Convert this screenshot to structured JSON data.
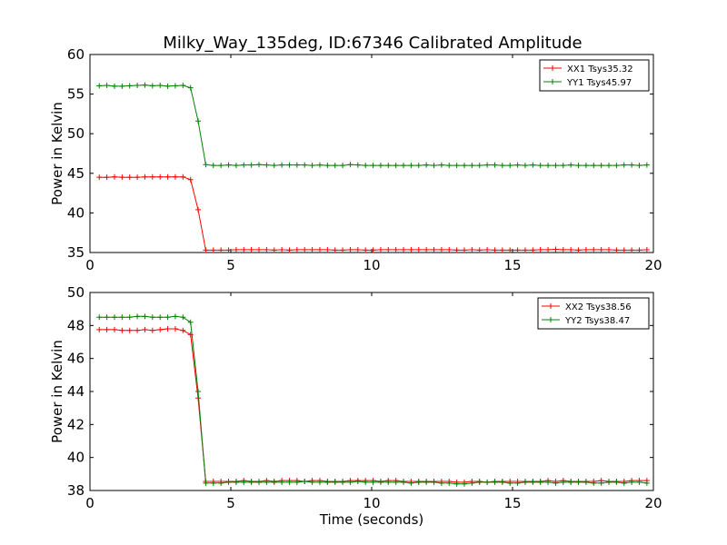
{
  "title": "Milky_Way_135deg, ID:67346 Calibrated Amplitude",
  "chart_data": [
    {
      "type": "line",
      "title": "Milky_Way_135deg, ID:67346 Calibrated Amplitude",
      "xlabel": "",
      "ylabel": "Power in Kelvin",
      "xlim": [
        0,
        20
      ],
      "ylim": [
        35,
        60
      ],
      "xticks": [
        0,
        5,
        10,
        15,
        20
      ],
      "yticks": [
        35,
        40,
        45,
        50,
        55,
        60
      ],
      "grid": false,
      "legend_position": "top-right",
      "x": [
        0.33,
        0.6,
        0.87,
        1.14,
        1.41,
        1.68,
        1.95,
        2.22,
        2.49,
        2.76,
        3.03,
        3.3,
        3.57,
        3.84,
        4.11,
        4.38,
        4.65,
        4.92,
        5.19,
        5.46,
        5.73,
        6.0,
        6.27,
        6.54,
        6.81,
        7.08,
        7.35,
        7.62,
        7.89,
        8.16,
        8.43,
        8.7,
        8.97,
        9.24,
        9.51,
        9.78,
        10.05,
        10.32,
        10.59,
        10.86,
        11.13,
        11.4,
        11.67,
        11.94,
        12.21,
        12.48,
        12.75,
        13.02,
        13.29,
        13.56,
        13.83,
        14.1,
        14.37,
        14.64,
        14.91,
        15.18,
        15.45,
        15.72,
        15.99,
        16.26,
        16.53,
        16.8,
        17.07,
        17.34,
        17.61,
        17.88,
        18.15,
        18.42,
        18.69,
        18.96,
        19.23,
        19.5,
        19.77
      ],
      "series": [
        {
          "name": "XX1 Tsys35.32",
          "color": "#ff0000",
          "values": [
            44.5,
            44.5,
            44.55,
            44.5,
            44.5,
            44.5,
            44.55,
            44.55,
            44.55,
            44.55,
            44.55,
            44.55,
            44.2,
            40.4,
            35.3,
            35.3,
            35.3,
            35.3,
            35.35,
            35.35,
            35.35,
            35.35,
            35.35,
            35.3,
            35.35,
            35.3,
            35.35,
            35.35,
            35.35,
            35.35,
            35.35,
            35.3,
            35.3,
            35.35,
            35.35,
            35.3,
            35.3,
            35.35,
            35.35,
            35.35,
            35.35,
            35.35,
            35.35,
            35.35,
            35.35,
            35.35,
            35.35,
            35.3,
            35.3,
            35.35,
            35.3,
            35.35,
            35.3,
            35.3,
            35.3,
            35.3,
            35.3,
            35.3,
            35.35,
            35.35,
            35.4,
            35.35,
            35.35,
            35.3,
            35.35,
            35.35,
            35.35,
            35.35,
            35.3,
            35.3,
            35.3,
            35.3,
            35.35
          ]
        },
        {
          "name": "YY1 Tsys45.97",
          "color": "#008000",
          "values": [
            56.05,
            56.1,
            56.0,
            56.0,
            56.05,
            56.1,
            56.15,
            56.05,
            56.1,
            56.0,
            56.05,
            56.1,
            55.8,
            51.6,
            46.1,
            46.0,
            46.0,
            46.05,
            46.0,
            46.05,
            46.05,
            46.1,
            46.05,
            46.0,
            46.05,
            46.05,
            46.05,
            46.05,
            46.0,
            46.05,
            46.0,
            46.0,
            46.0,
            46.1,
            46.05,
            46.0,
            46.0,
            46.0,
            46.0,
            46.0,
            46.0,
            46.0,
            46.0,
            46.05,
            46.0,
            46.05,
            46.0,
            46.0,
            46.0,
            46.0,
            46.0,
            46.05,
            46.05,
            46.0,
            46.0,
            46.05,
            46.0,
            46.05,
            46.0,
            46.0,
            46.0,
            46.0,
            46.05,
            46.0,
            46.0,
            46.0,
            46.0,
            46.0,
            46.0,
            46.05,
            46.05,
            46.0,
            46.05
          ]
        }
      ]
    },
    {
      "type": "line",
      "title": "",
      "xlabel": "Time (seconds)",
      "ylabel": "Power in Kelvin",
      "xlim": [
        0,
        20
      ],
      "ylim": [
        38,
        50
      ],
      "xticks": [
        0,
        5,
        10,
        15,
        20
      ],
      "yticks": [
        38,
        40,
        42,
        44,
        46,
        48,
        50
      ],
      "grid": false,
      "legend_position": "top-right",
      "x": [
        0.33,
        0.6,
        0.87,
        1.14,
        1.41,
        1.68,
        1.95,
        2.22,
        2.49,
        2.76,
        3.03,
        3.3,
        3.57,
        3.84,
        4.11,
        4.38,
        4.65,
        4.92,
        5.19,
        5.46,
        5.73,
        6.0,
        6.27,
        6.54,
        6.81,
        7.08,
        7.35,
        7.62,
        7.89,
        8.16,
        8.43,
        8.7,
        8.97,
        9.24,
        9.51,
        9.78,
        10.05,
        10.32,
        10.59,
        10.86,
        11.13,
        11.4,
        11.67,
        11.94,
        12.21,
        12.48,
        12.75,
        13.02,
        13.29,
        13.56,
        13.83,
        14.1,
        14.37,
        14.64,
        14.91,
        15.18,
        15.45,
        15.72,
        15.99,
        16.26,
        16.53,
        16.8,
        17.07,
        17.34,
        17.61,
        17.88,
        18.15,
        18.42,
        18.69,
        18.96,
        19.23,
        19.5,
        19.77
      ],
      "series": [
        {
          "name": "XX2 Tsys38.56",
          "color": "#ff0000",
          "values": [
            47.75,
            47.75,
            47.75,
            47.7,
            47.7,
            47.7,
            47.75,
            47.7,
            47.75,
            47.8,
            47.8,
            47.7,
            47.45,
            43.6,
            38.55,
            38.55,
            38.55,
            38.55,
            38.55,
            38.6,
            38.55,
            38.55,
            38.6,
            38.55,
            38.6,
            38.6,
            38.6,
            38.55,
            38.6,
            38.6,
            38.55,
            38.55,
            38.55,
            38.6,
            38.6,
            38.6,
            38.6,
            38.55,
            38.6,
            38.6,
            38.55,
            38.55,
            38.55,
            38.55,
            38.55,
            38.55,
            38.55,
            38.5,
            38.5,
            38.55,
            38.55,
            38.5,
            38.55,
            38.55,
            38.55,
            38.55,
            38.55,
            38.55,
            38.55,
            38.6,
            38.55,
            38.6,
            38.55,
            38.55,
            38.55,
            38.55,
            38.6,
            38.55,
            38.55,
            38.55,
            38.6,
            38.6,
            38.6
          ]
        },
        {
          "name": "YY2 Tsys38.47",
          "color": "#008000",
          "values": [
            48.5,
            48.5,
            48.5,
            48.5,
            48.5,
            48.55,
            48.55,
            48.5,
            48.5,
            48.5,
            48.55,
            48.5,
            48.2,
            44.0,
            38.45,
            38.45,
            38.45,
            38.5,
            38.5,
            38.5,
            38.5,
            38.5,
            38.5,
            38.5,
            38.5,
            38.5,
            38.5,
            38.55,
            38.5,
            38.5,
            38.5,
            38.5,
            38.5,
            38.5,
            38.55,
            38.5,
            38.5,
            38.5,
            38.5,
            38.5,
            38.5,
            38.45,
            38.5,
            38.5,
            38.5,
            38.45,
            38.45,
            38.4,
            38.4,
            38.45,
            38.5,
            38.5,
            38.5,
            38.5,
            38.45,
            38.45,
            38.5,
            38.5,
            38.5,
            38.5,
            38.45,
            38.5,
            38.5,
            38.5,
            38.5,
            38.45,
            38.45,
            38.5,
            38.5,
            38.45,
            38.5,
            38.5,
            38.45
          ]
        }
      ]
    }
  ]
}
